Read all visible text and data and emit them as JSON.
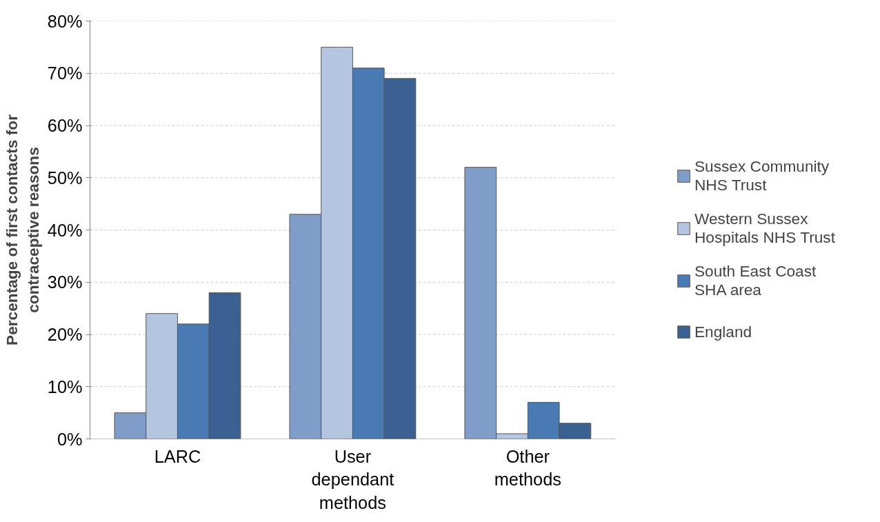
{
  "chart_data": {
    "type": "bar",
    "ylabel": "Percentage of first contacts for contraceptive reasons",
    "categories": [
      "LARC",
      "User dependant methods",
      "Other methods"
    ],
    "series": [
      {
        "name": "Sussex Community NHS Trust",
        "color": "#7f9dc8",
        "values": [
          5,
          43,
          52
        ]
      },
      {
        "name": "Western Sussex Hospitals NHS Trust",
        "color": "#b4c5e0",
        "values": [
          24,
          75,
          1
        ]
      },
      {
        "name": "South East Coast SHA area",
        "color": "#4a7ab4",
        "values": [
          22,
          71,
          7
        ]
      },
      {
        "name": "England",
        "color": "#3a6192",
        "values": [
          28,
          69,
          3
        ]
      }
    ],
    "ylim": [
      0,
      80
    ],
    "yticks": [
      {
        "value": 0,
        "label": "0%"
      },
      {
        "value": 10,
        "label": "10%"
      },
      {
        "value": 20,
        "label": "20%"
      },
      {
        "value": 30,
        "label": "30%"
      },
      {
        "value": 40,
        "label": "40%"
      },
      {
        "value": 50,
        "label": "50%"
      },
      {
        "value": 60,
        "label": "60%"
      },
      {
        "value": 70,
        "label": "70%"
      },
      {
        "value": 80,
        "label": "80%"
      }
    ],
    "grid": "y",
    "legend": "right"
  }
}
